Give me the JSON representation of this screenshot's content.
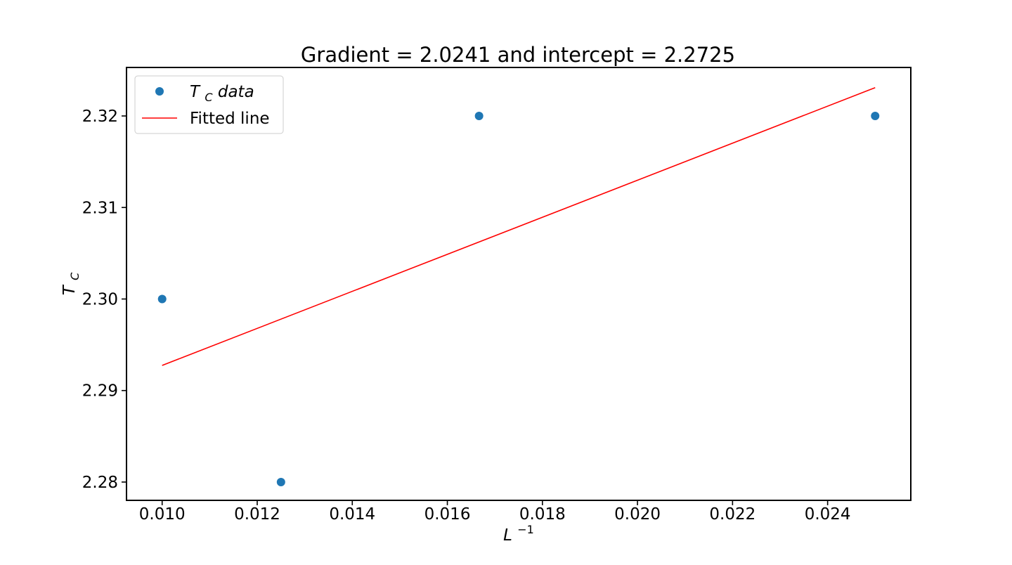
{
  "chart_data": {
    "type": "scatter",
    "title": "Gradient = 2.0241 and intercept = 2.2725",
    "xlabel": {
      "base": "L",
      "sup": "−1"
    },
    "ylabel": {
      "base": "T",
      "sub": "C"
    },
    "xlim": [
      0.00925,
      0.02575
    ],
    "ylim": [
      2.278,
      2.3253
    ],
    "xticks": [
      {
        "value": 0.01,
        "label": "0.010"
      },
      {
        "value": 0.012,
        "label": "0.012"
      },
      {
        "value": 0.014,
        "label": "0.014"
      },
      {
        "value": 0.016,
        "label": "0.016"
      },
      {
        "value": 0.018,
        "label": "0.018"
      },
      {
        "value": 0.02,
        "label": "0.020"
      },
      {
        "value": 0.022,
        "label": "0.022"
      },
      {
        "value": 0.024,
        "label": "0.024"
      }
    ],
    "yticks": [
      {
        "value": 2.28,
        "label": "2.28"
      },
      {
        "value": 2.29,
        "label": "2.29"
      },
      {
        "value": 2.3,
        "label": "2.30"
      },
      {
        "value": 2.31,
        "label": "2.31"
      },
      {
        "value": 2.32,
        "label": "2.32"
      }
    ],
    "grid": false,
    "legend_position": "top-left",
    "series": [
      {
        "name": {
          "base": "T",
          "sub": "C",
          "rest": "data"
        },
        "kind": "scatter",
        "color": "#1f77b4",
        "points": [
          {
            "x": 0.01,
            "y": 2.3
          },
          {
            "x": 0.0125,
            "y": 2.28
          },
          {
            "x": 0.016667,
            "y": 2.32
          },
          {
            "x": 0.025,
            "y": 2.32
          }
        ]
      },
      {
        "name": "Fitted line",
        "kind": "line",
        "color": "#ff0000",
        "points": [
          {
            "x": 0.01,
            "y": 2.29274
          },
          {
            "x": 0.025,
            "y": 2.3231
          }
        ]
      }
    ]
  }
}
